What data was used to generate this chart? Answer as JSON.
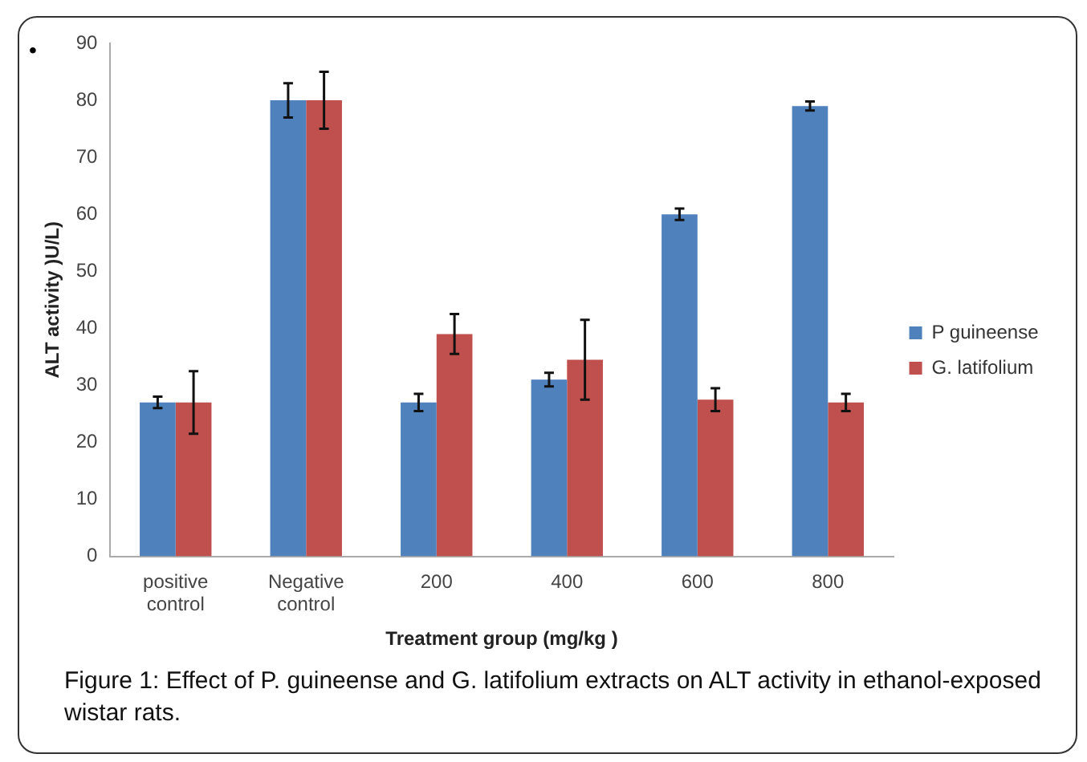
{
  "chart_data": {
    "type": "bar",
    "ylabel": "ALT activity )U/L)",
    "xlabel": "Treatment group (mg/kg )",
    "categories": [
      "positive control",
      "Negative control",
      "200",
      "400",
      "600",
      "800"
    ],
    "series": [
      {
        "name": "P guineense",
        "color": "#4f81bd",
        "values": [
          27,
          80,
          27,
          31,
          60,
          79
        ],
        "errors": [
          1,
          3,
          1.5,
          1.2,
          1,
          0.8
        ]
      },
      {
        "name": "G. latifolium",
        "color": "#c0504d",
        "values": [
          27,
          80,
          39,
          34.5,
          27.5,
          27
        ],
        "errors": [
          5.5,
          5,
          3.5,
          7,
          2,
          1.5
        ]
      }
    ],
    "ylim": [
      0,
      90
    ],
    "yticks": [
      0,
      10,
      20,
      30,
      40,
      50,
      60,
      70,
      80,
      90
    ],
    "grid": false,
    "legend": "right",
    "annotations": [
      "•",
      "Figure 1: Effect of P. guineense and G. latifolium extracts on ALT activity in ethanol-exposed wistar rats."
    ]
  }
}
